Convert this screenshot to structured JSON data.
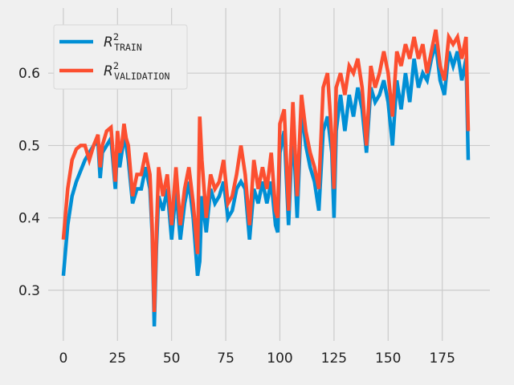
{
  "chart_data": {
    "type": "line",
    "xlim": [
      -7,
      197
    ],
    "ylim": [
      0.23,
      0.69
    ],
    "xticks": [
      0,
      25,
      50,
      75,
      100,
      125,
      150,
      175
    ],
    "yticks": [
      0.3,
      0.4,
      0.5,
      0.6
    ],
    "xtick_labels": [
      "0",
      "25",
      "50",
      "75",
      "100",
      "125",
      "150",
      "175"
    ],
    "ytick_labels": [
      "0.3",
      "0.4",
      "0.5",
      "0.6"
    ],
    "grid": true,
    "legend_position": "top-left",
    "colors": {
      "train": "#008fd5",
      "validation": "#fc4f30",
      "background": "#f0f0f0",
      "grid": "#cbcbcb"
    },
    "legend": [
      {
        "base": "R",
        "sup": "2",
        "sub": "TRAIN"
      },
      {
        "base": "R",
        "sup": "2",
        "sub": "VALIDATION"
      }
    ],
    "x_keys": [
      0,
      2,
      4,
      6,
      8,
      10,
      12,
      14,
      16,
      17,
      18,
      20,
      22,
      24,
      25,
      26,
      27,
      28,
      29,
      30,
      32,
      34,
      36,
      38,
      40,
      41,
      42,
      43,
      44,
      46,
      48,
      50,
      52,
      54,
      56,
      58,
      60,
      62,
      63,
      64,
      66,
      68,
      70,
      72,
      74,
      76,
      78,
      80,
      82,
      84,
      86,
      88,
      90,
      92,
      94,
      96,
      98,
      99,
      100,
      102,
      104,
      106,
      108,
      110,
      112,
      114,
      116,
      118,
      120,
      122,
      124,
      125,
      126,
      128,
      130,
      132,
      134,
      136,
      138,
      140,
      142,
      144,
      146,
      148,
      150,
      152,
      154,
      156,
      158,
      160,
      162,
      164,
      166,
      168,
      170,
      172,
      174,
      176,
      178,
      180,
      182,
      184,
      186,
      187
    ],
    "series": [
      {
        "name": "",
        "key": "train",
        "values": [
          0.32,
          0.39,
          0.43,
          0.45,
          0.465,
          0.48,
          0.49,
          0.5,
          0.505,
          0.455,
          0.49,
          0.5,
          0.51,
          0.44,
          0.5,
          0.47,
          0.49,
          0.51,
          0.5,
          0.48,
          0.42,
          0.44,
          0.44,
          0.47,
          0.44,
          0.38,
          0.25,
          0.36,
          0.43,
          0.41,
          0.44,
          0.37,
          0.44,
          0.37,
          0.42,
          0.45,
          0.4,
          0.32,
          0.34,
          0.43,
          0.38,
          0.44,
          0.42,
          0.43,
          0.45,
          0.4,
          0.41,
          0.44,
          0.45,
          0.44,
          0.37,
          0.44,
          0.42,
          0.45,
          0.42,
          0.45,
          0.39,
          0.38,
          0.49,
          0.52,
          0.39,
          0.53,
          0.4,
          0.55,
          0.5,
          0.47,
          0.45,
          0.41,
          0.52,
          0.54,
          0.49,
          0.4,
          0.52,
          0.57,
          0.52,
          0.57,
          0.54,
          0.58,
          0.55,
          0.49,
          0.58,
          0.56,
          0.57,
          0.59,
          0.56,
          0.5,
          0.59,
          0.55,
          0.6,
          0.56,
          0.62,
          0.58,
          0.6,
          0.59,
          0.62,
          0.64,
          0.59,
          0.57,
          0.63,
          0.61,
          0.63,
          0.59,
          0.62,
          0.48
        ]
      },
      {
        "name": "",
        "key": "validation",
        "values": [
          0.37,
          0.44,
          0.48,
          0.495,
          0.5,
          0.5,
          0.48,
          0.5,
          0.515,
          0.47,
          0.5,
          0.52,
          0.525,
          0.45,
          0.52,
          0.49,
          0.5,
          0.53,
          0.51,
          0.5,
          0.43,
          0.46,
          0.46,
          0.49,
          0.46,
          0.39,
          0.27,
          0.38,
          0.47,
          0.43,
          0.46,
          0.39,
          0.47,
          0.39,
          0.44,
          0.47,
          0.42,
          0.35,
          0.54,
          0.48,
          0.4,
          0.46,
          0.44,
          0.45,
          0.48,
          0.42,
          0.43,
          0.46,
          0.5,
          0.46,
          0.39,
          0.48,
          0.44,
          0.47,
          0.44,
          0.49,
          0.41,
          0.4,
          0.53,
          0.55,
          0.41,
          0.56,
          0.43,
          0.57,
          0.52,
          0.49,
          0.47,
          0.44,
          0.58,
          0.6,
          0.51,
          0.44,
          0.58,
          0.6,
          0.57,
          0.61,
          0.6,
          0.62,
          0.58,
          0.5,
          0.61,
          0.58,
          0.6,
          0.63,
          0.6,
          0.54,
          0.63,
          0.61,
          0.64,
          0.62,
          0.65,
          0.62,
          0.64,
          0.6,
          0.63,
          0.66,
          0.61,
          0.59,
          0.65,
          0.64,
          0.65,
          0.62,
          0.65,
          0.52
        ]
      }
    ]
  }
}
